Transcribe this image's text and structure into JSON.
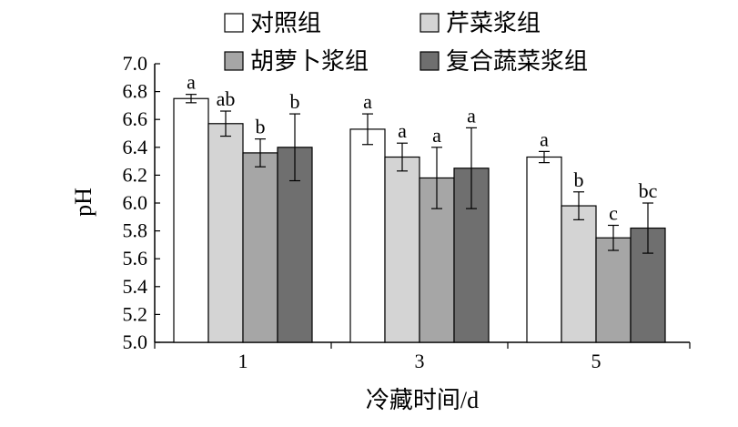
{
  "chart_data": {
    "type": "bar",
    "xlabel": "冷藏时间/d",
    "ylabel": "pH",
    "ylim": [
      5.0,
      7.0
    ],
    "yticks": [
      "5.0",
      "5.2",
      "5.4",
      "5.6",
      "5.8",
      "6.0",
      "6.2",
      "6.4",
      "6.6",
      "6.8",
      "7.0"
    ],
    "categories": [
      "1",
      "3",
      "5"
    ],
    "legend_position": "top",
    "series": [
      {
        "name": "对照组",
        "color": "#ffffff",
        "values": [
          6.75,
          6.53,
          6.33
        ],
        "errors": [
          0.03,
          0.11,
          0.04
        ],
        "labels": [
          "a",
          "a",
          "a"
        ]
      },
      {
        "name": "芹菜浆组",
        "color": "#d4d4d4",
        "values": [
          6.57,
          6.33,
          5.98
        ],
        "errors": [
          0.09,
          0.1,
          0.1
        ],
        "labels": [
          "ab",
          "a",
          "b"
        ]
      },
      {
        "name": "胡萝卜浆组",
        "color": "#a6a6a6",
        "values": [
          6.36,
          6.18,
          5.75
        ],
        "errors": [
          0.1,
          0.22,
          0.09
        ],
        "labels": [
          "b",
          "a",
          "c"
        ]
      },
      {
        "name": "复合蔬菜浆组",
        "color": "#6f6f6f",
        "values": [
          6.4,
          6.25,
          5.82
        ],
        "errors": [
          0.24,
          0.29,
          0.18
        ],
        "labels": [
          "b",
          "a",
          "bc"
        ]
      }
    ]
  }
}
